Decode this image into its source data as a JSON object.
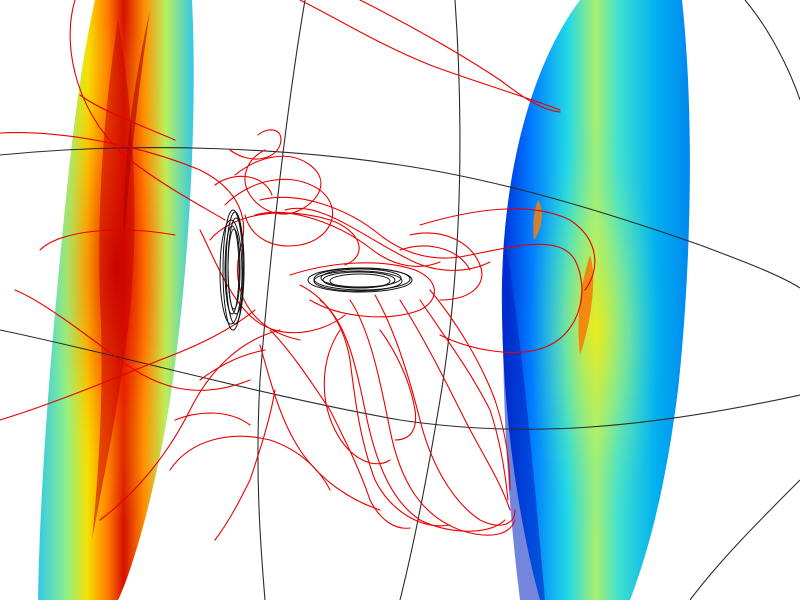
{
  "scene": {
    "background": "#ffffff",
    "colormap": [
      "#00008f",
      "#0050ff",
      "#00c8ff",
      "#7fffa0",
      "#ffff00",
      "#ff8000",
      "#c80000"
    ],
    "streamline_color": "#e80000",
    "grid_color": "#2b2b2b",
    "coil_color": "#111111"
  }
}
